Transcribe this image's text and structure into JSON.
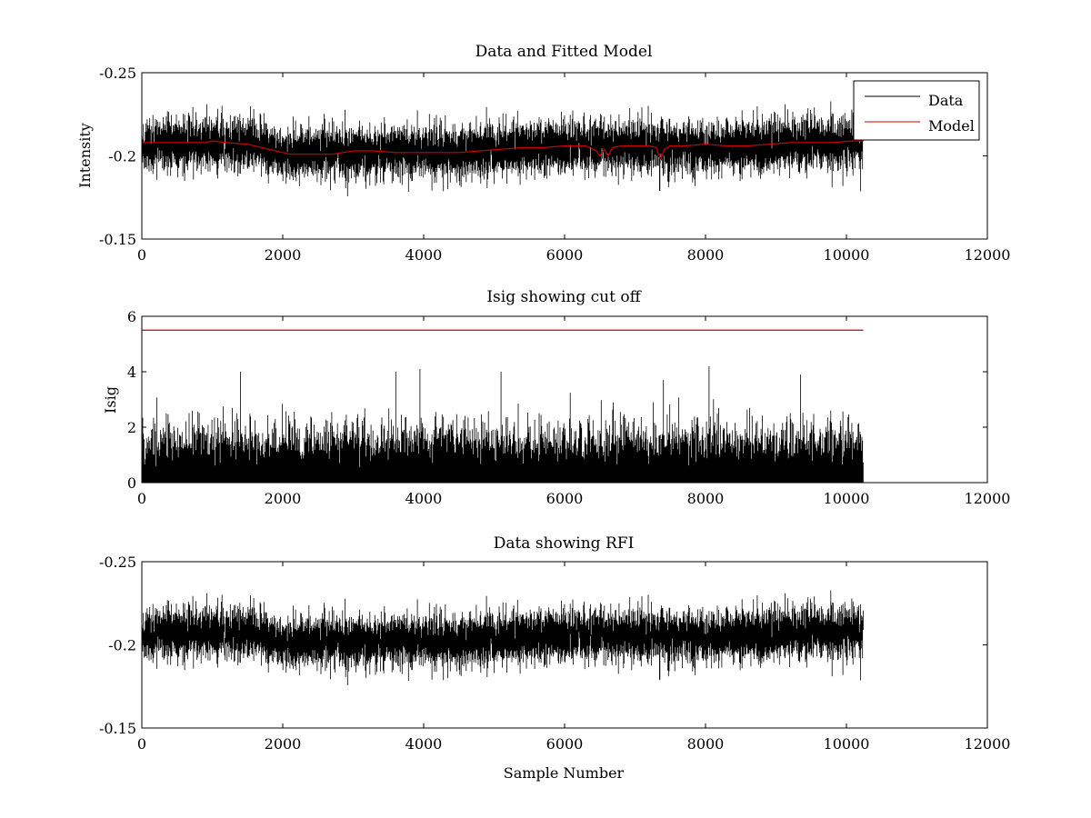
{
  "figure": {
    "background": "#ffffff",
    "colors": {
      "data": "#000000",
      "model": "#cc0000"
    }
  },
  "chart_data": [
    {
      "type": "line",
      "title": "Data and Fitted Model",
      "xlabel": "",
      "ylabel": "Intensity",
      "xlim": [
        0,
        12000
      ],
      "ylim": [
        -0.25,
        -0.15
      ],
      "y_reversed": true,
      "xticks": [
        0,
        2000,
        4000,
        6000,
        8000,
        10000,
        12000
      ],
      "xtick_labels": [
        "0",
        "2000",
        "4000",
        "6000",
        "8000",
        "10000",
        "12000"
      ],
      "yticks": [
        -0.15,
        -0.2,
        -0.25
      ],
      "ytick_labels": [
        "-0.15",
        "-0.2",
        "-0.25"
      ],
      "grid": false,
      "legend": {
        "location": "top-right",
        "entries": [
          "Data",
          "Model"
        ]
      },
      "series": [
        {
          "name": "Data",
          "color": "#000000",
          "n_samples": 10240,
          "noise_std": 0.0075,
          "baseline": {
            "x": [
              0,
              900,
              1400,
              2000,
              2600,
              3600,
              4300,
              5000,
              6000,
              7000,
              7800,
              8600,
              9300,
              10240
            ],
            "y": [
              -0.207,
              -0.208,
              -0.207,
              -0.202,
              -0.201,
              -0.203,
              -0.202,
              -0.204,
              -0.206,
              -0.206,
              -0.205,
              -0.206,
              -0.207,
              -0.208
            ]
          },
          "spikes": [
            {
              "x": 6500,
              "y": -0.195
            },
            {
              "x": 6600,
              "y": -0.197
            },
            {
              "x": 7350,
              "y": -0.179
            },
            {
              "x": 7400,
              "y": -0.188
            }
          ]
        },
        {
          "name": "Model",
          "color": "#cc0000",
          "x": [
            0,
            300,
            600,
            900,
            1000,
            1200,
            1500,
            1800,
            2100,
            2400,
            2700,
            3000,
            3300,
            3600,
            3900,
            4200,
            4500,
            4800,
            5100,
            5400,
            5700,
            6000,
            6300,
            6450,
            6500,
            6560,
            6620,
            6680,
            6800,
            7000,
            7200,
            7300,
            7360,
            7420,
            7500,
            7700,
            8000,
            8300,
            8600,
            8900,
            9200,
            9500,
            9800,
            10100,
            10240
          ],
          "y": [
            -0.208,
            -0.208,
            -0.208,
            -0.208,
            -0.209,
            -0.208,
            -0.207,
            -0.204,
            -0.201,
            -0.201,
            -0.201,
            -0.203,
            -0.203,
            -0.202,
            -0.202,
            -0.202,
            -0.202,
            -0.203,
            -0.204,
            -0.205,
            -0.205,
            -0.206,
            -0.206,
            -0.203,
            -0.2,
            -0.204,
            -0.2,
            -0.205,
            -0.206,
            -0.206,
            -0.206,
            -0.205,
            -0.198,
            -0.204,
            -0.206,
            -0.206,
            -0.207,
            -0.206,
            -0.206,
            -0.207,
            -0.208,
            -0.208,
            -0.208,
            -0.209,
            -0.209
          ]
        }
      ]
    },
    {
      "type": "line",
      "title": "Isig showing cut off",
      "xlabel": "",
      "ylabel": "Isig",
      "xlim": [
        0,
        12000
      ],
      "ylim": [
        0,
        6
      ],
      "xticks": [
        0,
        2000,
        4000,
        6000,
        8000,
        10000,
        12000
      ],
      "xtick_labels": [
        "0",
        "2000",
        "4000",
        "6000",
        "8000",
        "10000",
        "12000"
      ],
      "yticks": [
        0,
        2,
        4,
        6
      ],
      "ytick_labels": [
        "0",
        "2",
        "4",
        "6"
      ],
      "grid": false,
      "series": [
        {
          "color": "#000000",
          "n_samples": 10240,
          "mean": 0.8,
          "max_peaks": [
            {
              "x": 1400,
              "y": 4.0
            },
            {
              "x": 3600,
              "y": 4.0
            },
            {
              "x": 3950,
              "y": 4.1
            },
            {
              "x": 5100,
              "y": 4.0
            },
            {
              "x": 7400,
              "y": 3.7
            },
            {
              "x": 8050,
              "y": 4.2
            },
            {
              "x": 9350,
              "y": 3.9
            }
          ]
        },
        {
          "color": "#cc0000",
          "x": [
            0,
            10240
          ],
          "y": [
            5.5,
            5.5
          ]
        }
      ]
    },
    {
      "type": "line",
      "title": "Data showing RFI",
      "xlabel": "Sample Number",
      "ylabel": "",
      "xlim": [
        0,
        12000
      ],
      "ylim": [
        -0.25,
        -0.15
      ],
      "y_reversed": true,
      "xticks": [
        0,
        2000,
        4000,
        6000,
        8000,
        10000,
        12000
      ],
      "xtick_labels": [
        "0",
        "2000",
        "4000",
        "6000",
        "8000",
        "10000",
        "12000"
      ],
      "yticks": [
        -0.15,
        -0.2,
        -0.25
      ],
      "ytick_labels": [
        "-0.15",
        "-0.2",
        "-0.25"
      ],
      "grid": false,
      "series": [
        {
          "color": "#000000",
          "n_samples": 10240,
          "same_as": "Data",
          "spikes": [
            {
              "x": 7350,
              "y": -0.179
            }
          ]
        }
      ]
    }
  ]
}
